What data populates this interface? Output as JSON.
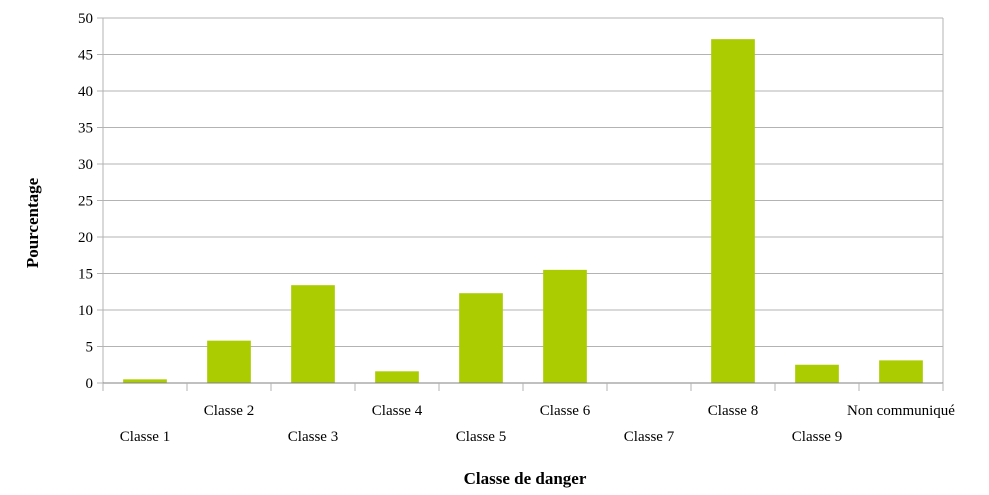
{
  "chart_data": {
    "type": "bar",
    "title": "",
    "xlabel": "Classe de danger",
    "ylabel": "Pourcentage",
    "categories": [
      "Classe 1",
      "Classe 2",
      "Classe 3",
      "Classe 4",
      "Classe 5",
      "Classe 6",
      "Classe 7",
      "Classe 8",
      "Classe 9",
      "Non communiqué"
    ],
    "values": [
      0.5,
      5.8,
      13.4,
      1.6,
      12.3,
      15.5,
      0,
      47.1,
      2.5,
      3.1
    ],
    "ylim": [
      0,
      50
    ],
    "yticks": [
      "0",
      "5",
      "10",
      "15",
      "20",
      "25",
      "30",
      "35",
      "40",
      "45",
      "50"
    ],
    "grid": true,
    "legend": "none",
    "bar_color": "#aacc00",
    "grid_color": "#b3b3b3"
  }
}
